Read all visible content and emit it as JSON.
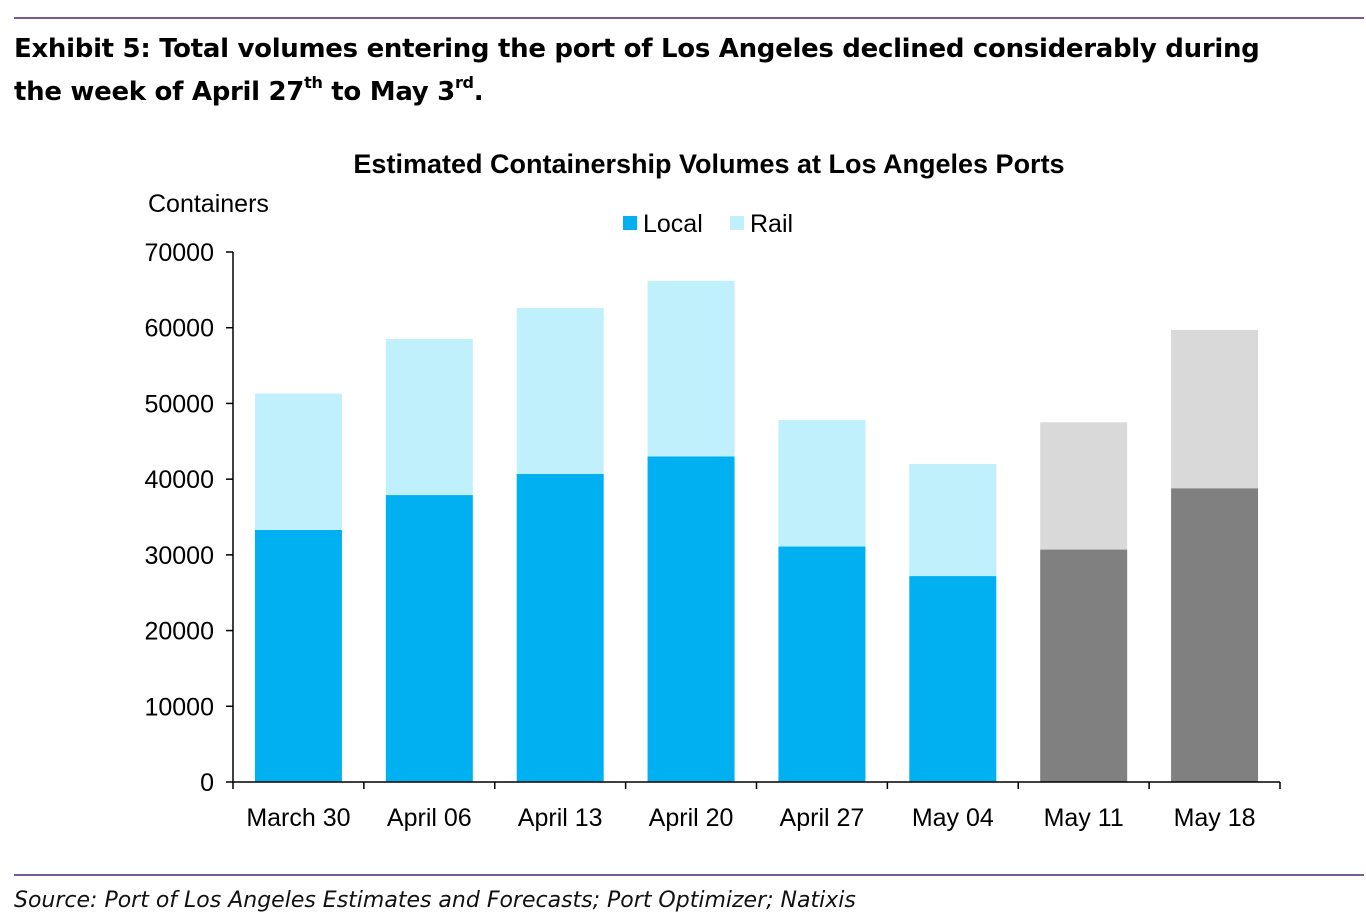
{
  "exhibit": {
    "heading_line1": "Exhibit 5: Total volumes entering the port of Los Angeles declined considerably during",
    "heading_line2_pre": "the week of April 27",
    "heading_line2_sup1": "th",
    "heading_line2_mid": " to May 3",
    "heading_line2_sup2": "rd",
    "heading_line2_post": "."
  },
  "source": "Source: Port of Los Angeles Estimates and Forecasts; Port Optimizer; Natixis",
  "colors": {
    "local": "#00b0f0",
    "rail": "#c0f0fc",
    "local_forecast": "#808080",
    "rail_forecast": "#d9d9d9",
    "rule": "#7b5b8f",
    "axis": "#000000"
  },
  "chart_data": {
    "type": "bar",
    "stacked": true,
    "title": "Estimated Containership  Volumes at Los Angeles Ports",
    "ylabel": "Containers",
    "xlabel": "",
    "ylim": [
      0,
      70000
    ],
    "yticks": [
      0,
      10000,
      20000,
      30000,
      40000,
      50000,
      60000,
      70000
    ],
    "grid": false,
    "legend": {
      "placement": "top-center",
      "entries": [
        "Local",
        "Rail"
      ]
    },
    "categories": [
      "March 30",
      "April 06",
      "April 13",
      "April 20",
      "April 27",
      "May 04",
      "May 11",
      "May 18"
    ],
    "forecast_categories": [
      "May 11",
      "May 18"
    ],
    "series": [
      {
        "name": "Local",
        "values": [
          33300,
          37900,
          40700,
          43000,
          31100,
          27200,
          30700,
          38800
        ]
      },
      {
        "name": "Rail",
        "values": [
          18000,
          20600,
          21900,
          23200,
          16700,
          14800,
          16800,
          20900
        ]
      }
    ]
  }
}
